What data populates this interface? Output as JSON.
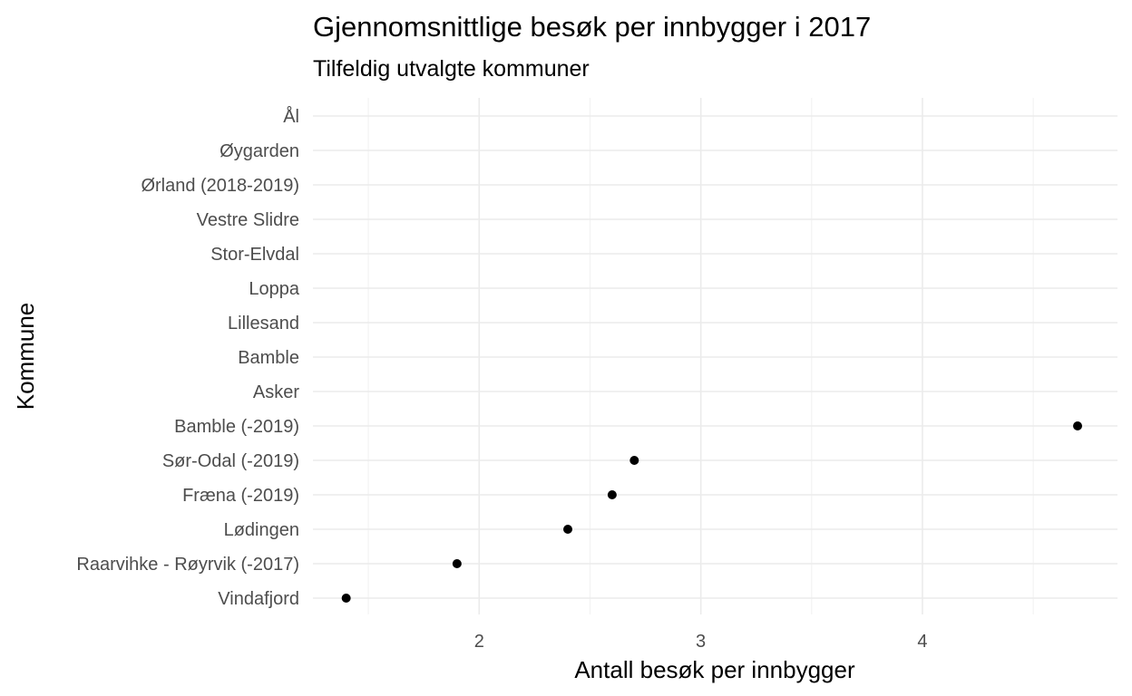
{
  "chart_data": {
    "type": "scatter",
    "title": "Gjennomsnittlige besøk per innbygger i 2017",
    "subtitle": "Tilfeldig utvalgte kommuner",
    "xlabel": "Antall besøk per innbygger",
    "ylabel": "Kommune",
    "xlim": [
      1.25,
      4.88
    ],
    "x_ticks": [
      2,
      3,
      4
    ],
    "x_tick_labels": [
      "2",
      "3",
      "4"
    ],
    "grid": true,
    "legend": "none",
    "categories": [
      "Vindafjord",
      "Raarvihke - Røyrvik (-2017)",
      "Lødingen",
      "Fræna (-2019)",
      "Sør-Odal (-2019)",
      "Bamble (-2019)",
      "Asker",
      "Bamble",
      "Lillesand",
      "Loppa",
      "Stor-Elvdal",
      "Vestre Slidre",
      "Ørland (2018-2019)",
      "Øygarden",
      "Ål"
    ],
    "values": [
      1.4,
      1.9,
      2.4,
      2.6,
      2.7,
      4.7,
      null,
      null,
      null,
      null,
      null,
      null,
      null,
      null,
      null
    ]
  }
}
